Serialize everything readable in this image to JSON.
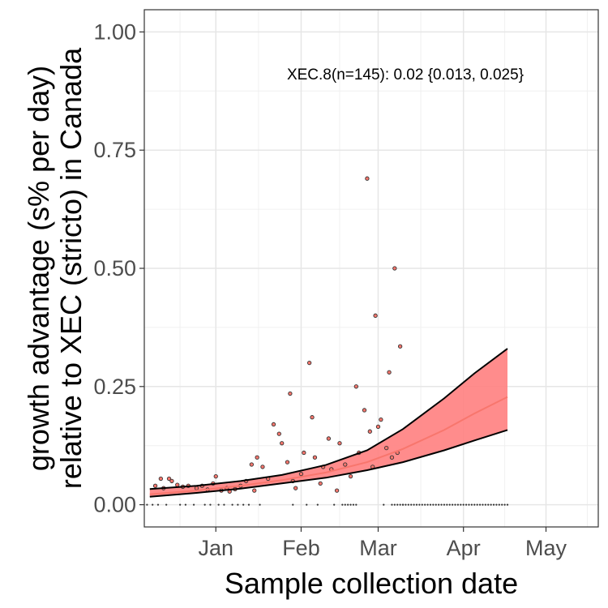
{
  "chart_data": {
    "type": "scatter",
    "title": "",
    "xlabel": "Sample collection date",
    "ylabel_lines": [
      "growth advantage (s% per day)",
      "relative to XEC (stricto) in Canada"
    ],
    "annotation": "XEC.8(n=145): 0.02 {0.013, 0.025}",
    "x_ticks": [
      {
        "label": "Jan",
        "date": "2025-01-01"
      },
      {
        "label": "Feb",
        "date": "2025-02-01"
      },
      {
        "label": "Mar",
        "date": "2025-03-01"
      },
      {
        "label": "Apr",
        "date": "2025-04-01"
      },
      {
        "label": "May",
        "date": "2025-05-01"
      }
    ],
    "y_ticks": [
      "0.00",
      "0.25",
      "0.50",
      "0.75",
      "1.00"
    ],
    "xlim": [
      "2024-12-06",
      "2025-05-20"
    ],
    "ylim": [
      -0.047,
      1.047
    ],
    "grid": true,
    "fit": {
      "color": "#F8766D",
      "band_color": "#FF8080",
      "x": [
        "2024-12-08",
        "2024-12-25",
        "2025-01-10",
        "2025-01-25",
        "2025-02-10",
        "2025-02-25",
        "2025-03-10",
        "2025-03-25",
        "2025-04-05",
        "2025-04-17"
      ],
      "mean": [
        0.022,
        0.03,
        0.04,
        0.052,
        0.068,
        0.09,
        0.118,
        0.158,
        0.193,
        0.228
      ],
      "lower": [
        0.017,
        0.025,
        0.034,
        0.045,
        0.057,
        0.073,
        0.09,
        0.115,
        0.136,
        0.158
      ],
      "upper": [
        0.033,
        0.04,
        0.05,
        0.063,
        0.084,
        0.115,
        0.16,
        0.225,
        0.278,
        0.33
      ]
    },
    "points": [
      {
        "x": "2024-12-10",
        "y": 0.04
      },
      {
        "x": "2024-12-12",
        "y": 0.055
      },
      {
        "x": "2024-12-13",
        "y": 0.035
      },
      {
        "x": "2024-12-15",
        "y": 0.055
      },
      {
        "x": "2024-12-16",
        "y": 0.05
      },
      {
        "x": "2024-12-18",
        "y": 0.042
      },
      {
        "x": "2024-12-20",
        "y": 0.038
      },
      {
        "x": "2024-12-22",
        "y": 0.04
      },
      {
        "x": "2024-12-25",
        "y": 0.035
      },
      {
        "x": "2024-12-27",
        "y": 0.04
      },
      {
        "x": "2024-12-29",
        "y": 0.032
      },
      {
        "x": "2024-12-31",
        "y": 0.045
      },
      {
        "x": "2025-01-01",
        "y": 0.06
      },
      {
        "x": "2025-01-03",
        "y": 0.03
      },
      {
        "x": "2025-01-05",
        "y": 0.035
      },
      {
        "x": "2025-01-06",
        "y": 0.028
      },
      {
        "x": "2025-01-08",
        "y": 0.033
      },
      {
        "x": "2025-01-10",
        "y": 0.04
      },
      {
        "x": "2025-01-12",
        "y": 0.05
      },
      {
        "x": "2025-01-14",
        "y": 0.085
      },
      {
        "x": "2025-01-15",
        "y": 0.03
      },
      {
        "x": "2025-01-16",
        "y": 0.1
      },
      {
        "x": "2025-01-18",
        "y": 0.08
      },
      {
        "x": "2025-01-20",
        "y": 0.055
      },
      {
        "x": "2025-01-22",
        "y": 0.17
      },
      {
        "x": "2025-01-24",
        "y": 0.15
      },
      {
        "x": "2025-01-25",
        "y": 0.13
      },
      {
        "x": "2025-01-27",
        "y": 0.09
      },
      {
        "x": "2025-01-28",
        "y": 0.235
      },
      {
        "x": "2025-01-29",
        "y": 0.05
      },
      {
        "x": "2025-01-30",
        "y": 0.035
      },
      {
        "x": "2025-02-01",
        "y": 0.065
      },
      {
        "x": "2025-02-02",
        "y": 0.11
      },
      {
        "x": "2025-02-04",
        "y": 0.3
      },
      {
        "x": "2025-02-05",
        "y": 0.185
      },
      {
        "x": "2025-02-06",
        "y": 0.1
      },
      {
        "x": "2025-02-08",
        "y": 0.045
      },
      {
        "x": "2025-02-09",
        "y": 0.08
      },
      {
        "x": "2025-02-11",
        "y": 0.14
      },
      {
        "x": "2025-02-12",
        "y": 0.075
      },
      {
        "x": "2025-02-14",
        "y": 0.03
      },
      {
        "x": "2025-02-15",
        "y": 0.13
      },
      {
        "x": "2025-02-17",
        "y": 0.085
      },
      {
        "x": "2025-02-19",
        "y": 0.06
      },
      {
        "x": "2025-02-21",
        "y": 0.25
      },
      {
        "x": "2025-02-22",
        "y": 0.11
      },
      {
        "x": "2025-02-24",
        "y": 0.2
      },
      {
        "x": "2025-02-25",
        "y": 0.69
      },
      {
        "x": "2025-02-26",
        "y": 0.155
      },
      {
        "x": "2025-02-27",
        "y": 0.08
      },
      {
        "x": "2025-02-28",
        "y": 0.4
      },
      {
        "x": "2025-03-01",
        "y": 0.165
      },
      {
        "x": "2025-03-02",
        "y": 0.18
      },
      {
        "x": "2025-03-04",
        "y": 0.12
      },
      {
        "x": "2025-03-05",
        "y": 0.28
      },
      {
        "x": "2025-03-06",
        "y": 0.1
      },
      {
        "x": "2025-03-07",
        "y": 0.5
      },
      {
        "x": "2025-03-08",
        "y": 0.11
      },
      {
        "x": "2025-03-09",
        "y": 0.335
      }
    ],
    "zero_points": {
      "dates": [
        "2024-12-07",
        "2024-12-09",
        "2024-12-11",
        "2024-12-14",
        "2024-12-19",
        "2024-12-21",
        "2024-12-24",
        "2024-12-28",
        "2024-12-30",
        "2025-01-02",
        "2025-01-04",
        "2025-01-07",
        "2025-01-09",
        "2025-01-11",
        "2025-01-13",
        "2025-01-17",
        "2025-01-29",
        "2025-02-03",
        "2025-02-07",
        "2025-02-13",
        "2025-02-16",
        "2025-02-17",
        "2025-02-18",
        "2025-02-19",
        "2025-02-20",
        "2025-02-21",
        "2025-03-03",
        "2025-03-06",
        "2025-03-07",
        "2025-03-08",
        "2025-03-09",
        "2025-03-10"
      ],
      "run_start": "2025-03-10",
      "run_end": "2025-04-17",
      "y": 0
    }
  }
}
